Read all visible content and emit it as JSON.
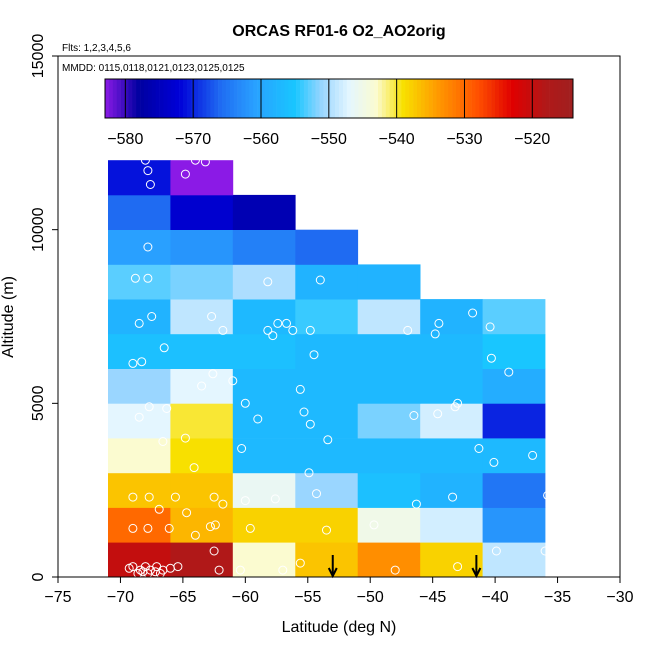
{
  "chart_data": {
    "type": "heatmap",
    "title": "ORCAS RF01-6 O2_AO2orig",
    "notes": [
      "Flts: 1,2,3,4,5,6",
      "MMDD: 0115,0118,0121,0123,0125,0125"
    ],
    "xlabel": "Latitude (deg N)",
    "ylabel": "Altitude (m)",
    "xlim": [
      -75,
      -30
    ],
    "ylim": [
      0,
      15000
    ],
    "x_ticks": [
      -75,
      -70,
      -65,
      -60,
      -55,
      -50,
      -45,
      -40,
      -35,
      -30
    ],
    "y_ticks": [
      0,
      5000,
      10000,
      15000
    ],
    "colorbar": {
      "range": [
        -583,
        -514
      ],
      "ticks": [
        -580,
        -570,
        -560,
        -550,
        -540,
        -530,
        -520
      ],
      "stops": [
        {
          "v": -583,
          "c": "#8b1ae6"
        },
        {
          "v": -578,
          "c": "#0000a0"
        },
        {
          "v": -572,
          "c": "#0000d8"
        },
        {
          "v": -566,
          "c": "#1f6bf2"
        },
        {
          "v": -561,
          "c": "#29a0ff"
        },
        {
          "v": -555,
          "c": "#19c6ff"
        },
        {
          "v": -551,
          "c": "#9ad6ff"
        },
        {
          "v": -547,
          "c": "#e4f6ff"
        },
        {
          "v": -543,
          "c": "#fbfbd0"
        },
        {
          "v": -539,
          "c": "#f8e000"
        },
        {
          "v": -534,
          "c": "#ff9a00"
        },
        {
          "v": -528,
          "c": "#ff5000"
        },
        {
          "v": -523,
          "c": "#e00000"
        },
        {
          "v": -518,
          "c": "#b01818"
        },
        {
          "v": -514,
          "c": "#a02020"
        }
      ]
    },
    "bin_edges": {
      "lat": [
        -71,
        -66,
        -61,
        -56,
        -51,
        -46,
        -41,
        -36
      ],
      "alt": [
        0,
        1000,
        2000,
        3000,
        4000,
        5000,
        6000,
        7000,
        8000,
        9000,
        10000,
        11000,
        12000
      ]
    },
    "cells": [
      [
        -71,
        0,
        -520
      ],
      [
        -66,
        0,
        -518
      ],
      [
        -61,
        0,
        -543
      ],
      [
        -56,
        0,
        -537
      ],
      [
        -51,
        0,
        -533
      ],
      [
        -46,
        0,
        -538
      ],
      [
        -41,
        0,
        -549
      ],
      [
        -71,
        1000,
        -530
      ],
      [
        -66,
        1000,
        -536
      ],
      [
        -61,
        1000,
        -538
      ],
      [
        -56,
        1000,
        -538
      ],
      [
        -51,
        1000,
        -545
      ],
      [
        -46,
        1000,
        -548
      ],
      [
        -41,
        1000,
        -562
      ],
      [
        -71,
        2000,
        -537
      ],
      [
        -66,
        2000,
        -537
      ],
      [
        -61,
        2000,
        -546
      ],
      [
        -56,
        2000,
        -551
      ],
      [
        -51,
        2000,
        -556
      ],
      [
        -46,
        2000,
        -558
      ],
      [
        -41,
        2000,
        -565
      ],
      [
        -71,
        3000,
        -543
      ],
      [
        -66,
        3000,
        -539
      ],
      [
        -61,
        3000,
        -557
      ],
      [
        -56,
        3000,
        -557
      ],
      [
        -51,
        3000,
        -557
      ],
      [
        -46,
        3000,
        -557
      ],
      [
        -41,
        3000,
        -557
      ],
      [
        -71,
        4000,
        -547
      ],
      [
        -66,
        4000,
        -540
      ],
      [
        -61,
        4000,
        -557
      ],
      [
        -56,
        4000,
        -557
      ],
      [
        -51,
        4000,
        -552
      ],
      [
        -46,
        4000,
        -548
      ],
      [
        -41,
        4000,
        -570
      ],
      [
        -71,
        5000,
        -551
      ],
      [
        -66,
        5000,
        -547
      ],
      [
        -61,
        5000,
        -557
      ],
      [
        -56,
        5000,
        -557
      ],
      [
        -51,
        5000,
        -557
      ],
      [
        -46,
        5000,
        -557
      ],
      [
        -41,
        5000,
        -559
      ],
      [
        -71,
        6000,
        -556
      ],
      [
        -66,
        6000,
        -556
      ],
      [
        -61,
        6000,
        -556
      ],
      [
        -56,
        6000,
        -557
      ],
      [
        -51,
        6000,
        -557
      ],
      [
        -46,
        6000,
        -557
      ],
      [
        -41,
        6000,
        -555
      ],
      [
        -71,
        7000,
        -558
      ],
      [
        -66,
        7000,
        -549
      ],
      [
        -61,
        7000,
        -557
      ],
      [
        -56,
        7000,
        -554
      ],
      [
        -51,
        7000,
        -549
      ],
      [
        -46,
        7000,
        -558
      ],
      [
        -41,
        7000,
        -553
      ],
      [
        -71,
        8000,
        -553
      ],
      [
        -66,
        8000,
        -552
      ],
      [
        -61,
        8000,
        -550
      ],
      [
        -56,
        8000,
        -558
      ],
      [
        -51,
        8000,
        -558
      ],
      [
        -71,
        9000,
        -561
      ],
      [
        -66,
        9000,
        -562
      ],
      [
        -61,
        9000,
        -564
      ],
      [
        -56,
        9000,
        -566
      ],
      [
        -71,
        10000,
        -566
      ],
      [
        -66,
        10000,
        -573
      ],
      [
        -61,
        10000,
        -576
      ],
      [
        -71,
        11000,
        -571
      ],
      [
        -66,
        11000,
        -583
      ]
    ],
    "points": [
      [
        -68,
        12000
      ],
      [
        -67.8,
        11700
      ],
      [
        -67.6,
        11300
      ],
      [
        -64.8,
        11600
      ],
      [
        -64,
        12000
      ],
      [
        -63.2,
        11950
      ],
      [
        -67.8,
        9500
      ],
      [
        -68.8,
        8600
      ],
      [
        -67.8,
        8600
      ],
      [
        -58.2,
        8500
      ],
      [
        -54,
        8550
      ],
      [
        -67.5,
        7500
      ],
      [
        -68.5,
        7300
      ],
      [
        -62.7,
        7500
      ],
      [
        -61.8,
        7100
      ],
      [
        -56.7,
        7300
      ],
      [
        -57.4,
        7300
      ],
      [
        -58.2,
        7100
      ],
      [
        -57.8,
        6950
      ],
      [
        -56.2,
        7100
      ],
      [
        -54.8,
        7100
      ],
      [
        -47,
        7100
      ],
      [
        -44.5,
        7300
      ],
      [
        -44.8,
        7000
      ],
      [
        -41.8,
        7600
      ],
      [
        -40.4,
        7200
      ],
      [
        -34.6,
        7550
      ],
      [
        -68.3,
        6200
      ],
      [
        -66.5,
        6600
      ],
      [
        -69,
        6150
      ],
      [
        -54.5,
        6400
      ],
      [
        -40.3,
        6300
      ],
      [
        -62.6,
        5850
      ],
      [
        -63.5,
        5500
      ],
      [
        -61,
        5650
      ],
      [
        -55.6,
        5400
      ],
      [
        -55.3,
        4750
      ],
      [
        -54.8,
        4400
      ],
      [
        -53.4,
        3950
      ],
      [
        -67.7,
        4900
      ],
      [
        -68.5,
        4600
      ],
      [
        -66.3,
        4850
      ],
      [
        -60,
        5000
      ],
      [
        -59,
        4550
      ],
      [
        -46.5,
        4650
      ],
      [
        -44.6,
        4700
      ],
      [
        -43.2,
        4900
      ],
      [
        -43,
        5000
      ],
      [
        -38.9,
        5900
      ],
      [
        -35,
        4950
      ],
      [
        -66.6,
        3900
      ],
      [
        -64.8,
        4000
      ],
      [
        -60.3,
        3700
      ],
      [
        -64.1,
        3150
      ],
      [
        -41.3,
        3700
      ],
      [
        -40.1,
        3300
      ],
      [
        -37,
        3500
      ],
      [
        -54.9,
        3000
      ],
      [
        -69,
        2300
      ],
      [
        -67.7,
        2300
      ],
      [
        -65.6,
        2300
      ],
      [
        -62.5,
        2300
      ],
      [
        -61.8,
        2100
      ],
      [
        -60,
        2200
      ],
      [
        -57.6,
        2250
      ],
      [
        -54.3,
        2400
      ],
      [
        -46.3,
        2100
      ],
      [
        -43.4,
        2300
      ],
      [
        -35.8,
        2350
      ],
      [
        -69,
        1400
      ],
      [
        -67.8,
        1400
      ],
      [
        -66.1,
        1400
      ],
      [
        -62.8,
        1450
      ],
      [
        -62.4,
        1500
      ],
      [
        -64.7,
        1850
      ],
      [
        -66.9,
        1950
      ],
      [
        -59.6,
        1400
      ],
      [
        -53.5,
        1350
      ],
      [
        -49.7,
        1500
      ],
      [
        -69.3,
        250
      ],
      [
        -69,
        300
      ],
      [
        -68.4,
        200
      ],
      [
        -68,
        300
      ],
      [
        -67.6,
        200
      ],
      [
        -67.1,
        300
      ],
      [
        -66.6,
        200
      ],
      [
        -66,
        250
      ],
      [
        -65.4,
        300
      ],
      [
        -68.6,
        100
      ],
      [
        -68.2,
        150
      ],
      [
        -67.8,
        100
      ],
      [
        -67.2,
        150
      ],
      [
        -66.8,
        100
      ],
      [
        -64,
        1200
      ],
      [
        -62.5,
        750
      ],
      [
        -62.1,
        200
      ],
      [
        -60.4,
        200
      ],
      [
        -55.6,
        400
      ],
      [
        -48,
        200
      ],
      [
        -43,
        300
      ],
      [
        -39.9,
        750
      ],
      [
        -36,
        750
      ],
      [
        -35.4,
        250
      ],
      [
        -35.6,
        100
      ],
      [
        -57,
        200
      ]
    ],
    "arrows": [
      -53,
      -41.5
    ]
  }
}
